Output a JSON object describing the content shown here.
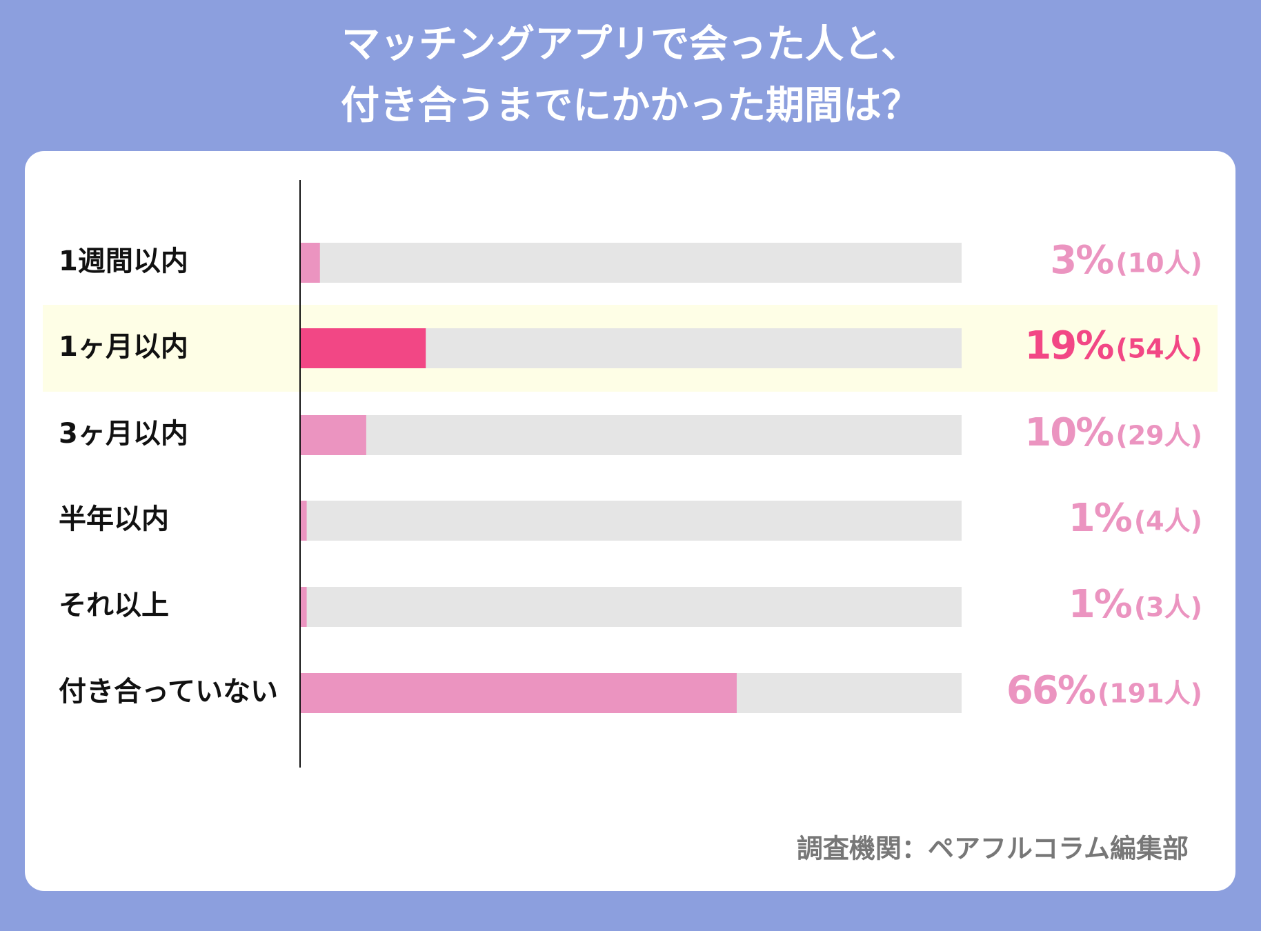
{
  "chart_data": {
    "type": "hbar",
    "title": [
      "マッチングアプリで会った人と、",
      "付き合うまでにかかった期間は？"
    ],
    "categories": [
      "1週間以内",
      "1ヶ月以内",
      "3ヶ月以内",
      "半年以内",
      "それ以上",
      "付き合っていない"
    ],
    "values": [
      3,
      19,
      10,
      1,
      1,
      66
    ],
    "value_labels": [
      "3%",
      "19%",
      "10%",
      "1%",
      "1%",
      "66%"
    ],
    "count_labels": [
      "(10人)",
      "(54人)",
      "(29人)",
      "(4人)",
      "(3人)",
      "(191人)"
    ],
    "colors": [
      "#eb94c0",
      "#f24785",
      "#eb94c0",
      "#eb94c0",
      "#eb94c0",
      "#eb94c0"
    ],
    "highlighted": [
      false,
      true,
      false,
      false,
      false,
      false
    ],
    "highlight_color": "#fefee6",
    "track_color": "#e5e5e5",
    "xlim": [
      0,
      100
    ],
    "source": "調査機関：ペアフルコラム編集部"
  }
}
